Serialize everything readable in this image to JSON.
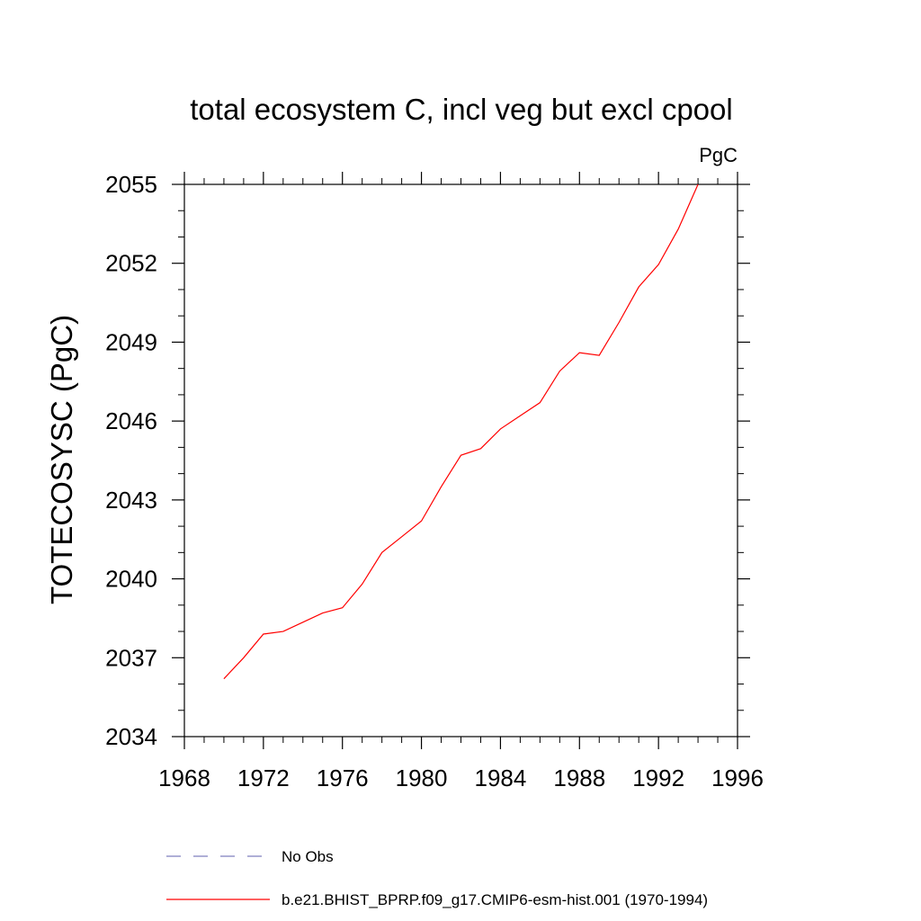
{
  "chart_data": {
    "type": "line",
    "title": "total ecosystem C, incl veg but excl cpool",
    "units": "PgC",
    "xlabel": "",
    "ylabel": "TOTECOSYSC  (PgC)",
    "xlim": [
      1968,
      1996
    ],
    "ylim": [
      2034,
      2055
    ],
    "xticks": [
      1968,
      1972,
      1976,
      1980,
      1984,
      1988,
      1992,
      1996
    ],
    "yticks": [
      2034,
      2037,
      2040,
      2043,
      2046,
      2049,
      2052,
      2055
    ],
    "grid": false,
    "legend_position": "bottom",
    "series": [
      {
        "name": "No Obs",
        "color": "#7f7fbf",
        "style": "dashed",
        "x": [],
        "y": []
      },
      {
        "name": "b.e21.BHIST_BPRP.f09_g17.CMIP6-esm-hist.001 (1970-1994)",
        "color": "#ff0000",
        "style": "solid",
        "x": [
          1970,
          1971,
          1972,
          1973,
          1974,
          1975,
          1976,
          1977,
          1978,
          1979,
          1980,
          1981,
          1982,
          1983,
          1984,
          1985,
          1986,
          1987,
          1988,
          1989,
          1990,
          1991,
          1992,
          1993,
          1994
        ],
        "y": [
          2036.2,
          2037.0,
          2037.9,
          2038.0,
          2038.35,
          2038.7,
          2038.9,
          2039.8,
          2041.0,
          2041.6,
          2042.2,
          2043.5,
          2044.7,
          2044.95,
          2045.7,
          2046.2,
          2046.7,
          2047.9,
          2048.6,
          2048.5,
          2049.75,
          2051.1,
          2051.95,
          2053.3,
          2055.0
        ]
      }
    ]
  }
}
